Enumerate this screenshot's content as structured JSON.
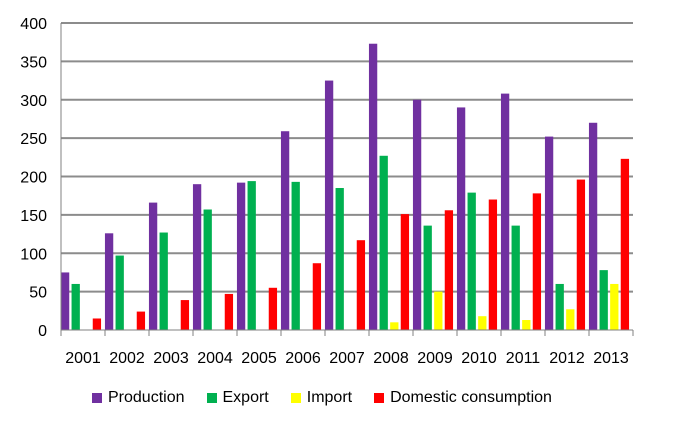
{
  "chart_data": {
    "type": "bar",
    "categories": [
      "2001",
      "2002",
      "2003",
      "2004",
      "2005",
      "2006",
      "2007",
      "2008",
      "2009",
      "2010",
      "2011",
      "2012",
      "2013"
    ],
    "series": [
      {
        "name": "Production",
        "color": "#7030A0",
        "values": [
          75,
          126,
          166,
          190,
          192,
          259,
          325,
          373,
          300,
          290,
          308,
          252,
          270
        ]
      },
      {
        "name": "Export",
        "color": "#00B050",
        "values": [
          60,
          97,
          127,
          157,
          194,
          193,
          185,
          227,
          136,
          179,
          136,
          60,
          78
        ]
      },
      {
        "name": "Import",
        "color": "#FFFF00",
        "values": [
          0,
          0,
          0,
          0,
          0,
          0,
          0,
          10,
          50,
          18,
          13,
          27,
          60
        ]
      },
      {
        "name": "Domestic consumption",
        "color": "#FF0000",
        "values": [
          15,
          24,
          39,
          47,
          55,
          87,
          117,
          151,
          156,
          170,
          178,
          196,
          223
        ]
      }
    ],
    "ylim": [
      0,
      400
    ],
    "yticks": [
      0,
      50,
      100,
      150,
      200,
      250,
      300,
      350,
      400
    ],
    "grid": true,
    "legend_position": "bottom"
  }
}
